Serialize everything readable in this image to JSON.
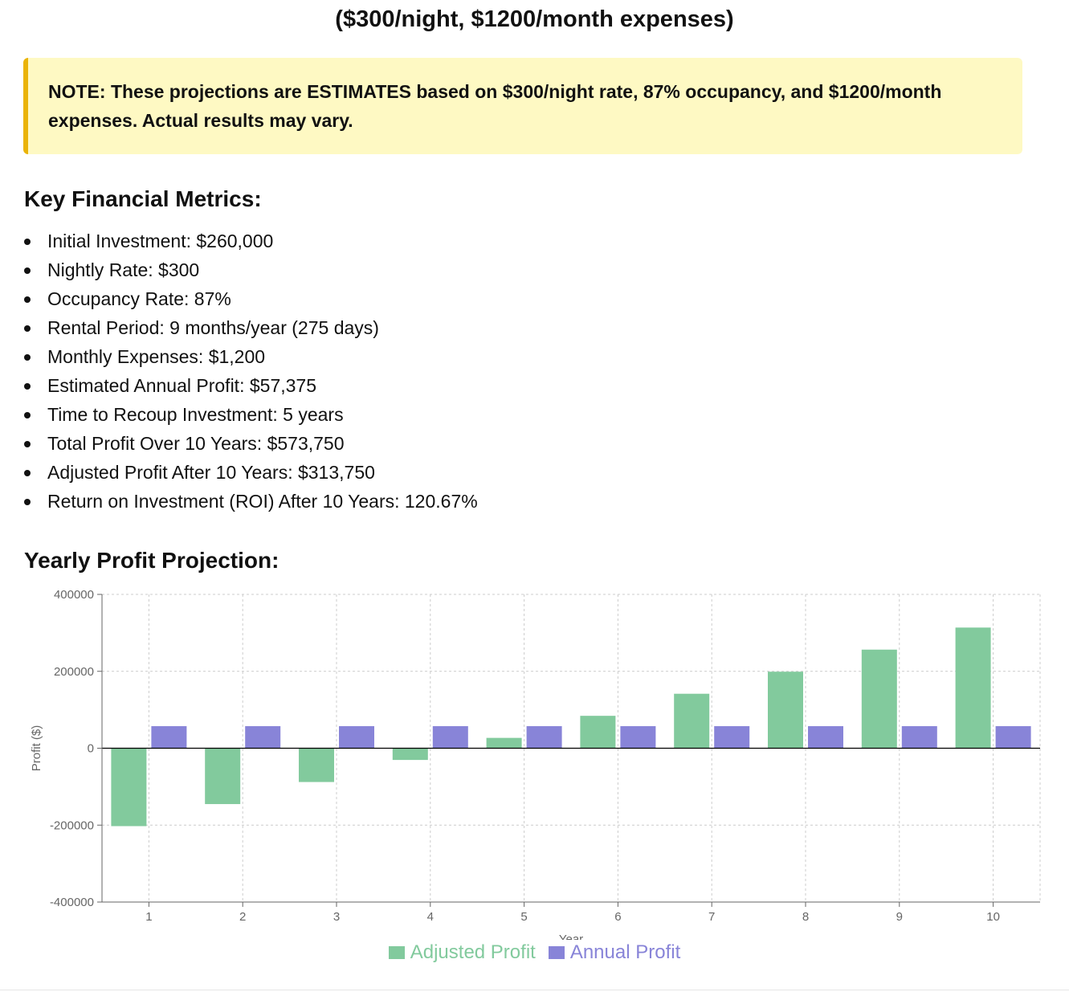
{
  "header": {
    "subtitle": "($300/night, $1200/month expenses)"
  },
  "note": {
    "text": "NOTE: These projections are ESTIMATES based on $300/night rate, 87% occupancy, and $1200/month expenses. Actual results may vary."
  },
  "metrics": {
    "title": "Key Financial Metrics:",
    "items": [
      "Initial Investment: $260,000",
      "Nightly Rate: $300",
      "Occupancy Rate: 87%",
      "Rental Period: 9 months/year (275 days)",
      "Monthly Expenses: $1,200",
      "Estimated Annual Profit: $57,375",
      "Time to Recoup Investment: 5 years",
      "Total Profit Over 10 Years: $573,750",
      "Adjusted Profit After 10 Years: $313,750",
      "Return on Investment (ROI) After 10 Years: 120.67%"
    ]
  },
  "projection": {
    "title": "Yearly Profit Projection:"
  },
  "colors": {
    "adjusted": "#82ca9d",
    "annual": "#8884d8",
    "grid": "#cccccc",
    "axis": "#666666"
  },
  "chart_data": {
    "type": "bar",
    "title": "",
    "xlabel": "Year",
    "ylabel": "Profit ($)",
    "ylim": [
      -400000,
      400000
    ],
    "yticks": [
      400000,
      200000,
      0,
      -200000,
      -400000
    ],
    "categories": [
      "1",
      "2",
      "3",
      "4",
      "5",
      "6",
      "7",
      "8",
      "9",
      "10"
    ],
    "grid": true,
    "legend": "bottom-center",
    "series": [
      {
        "name": "Adjusted Profit",
        "values": [
          -202625,
          -145250,
          -87875,
          -30500,
          26875,
          84250,
          141625,
          199000,
          256375,
          313750
        ]
      },
      {
        "name": "Annual Profit",
        "values": [
          57375,
          57375,
          57375,
          57375,
          57375,
          57375,
          57375,
          57375,
          57375,
          57375
        ]
      }
    ]
  }
}
